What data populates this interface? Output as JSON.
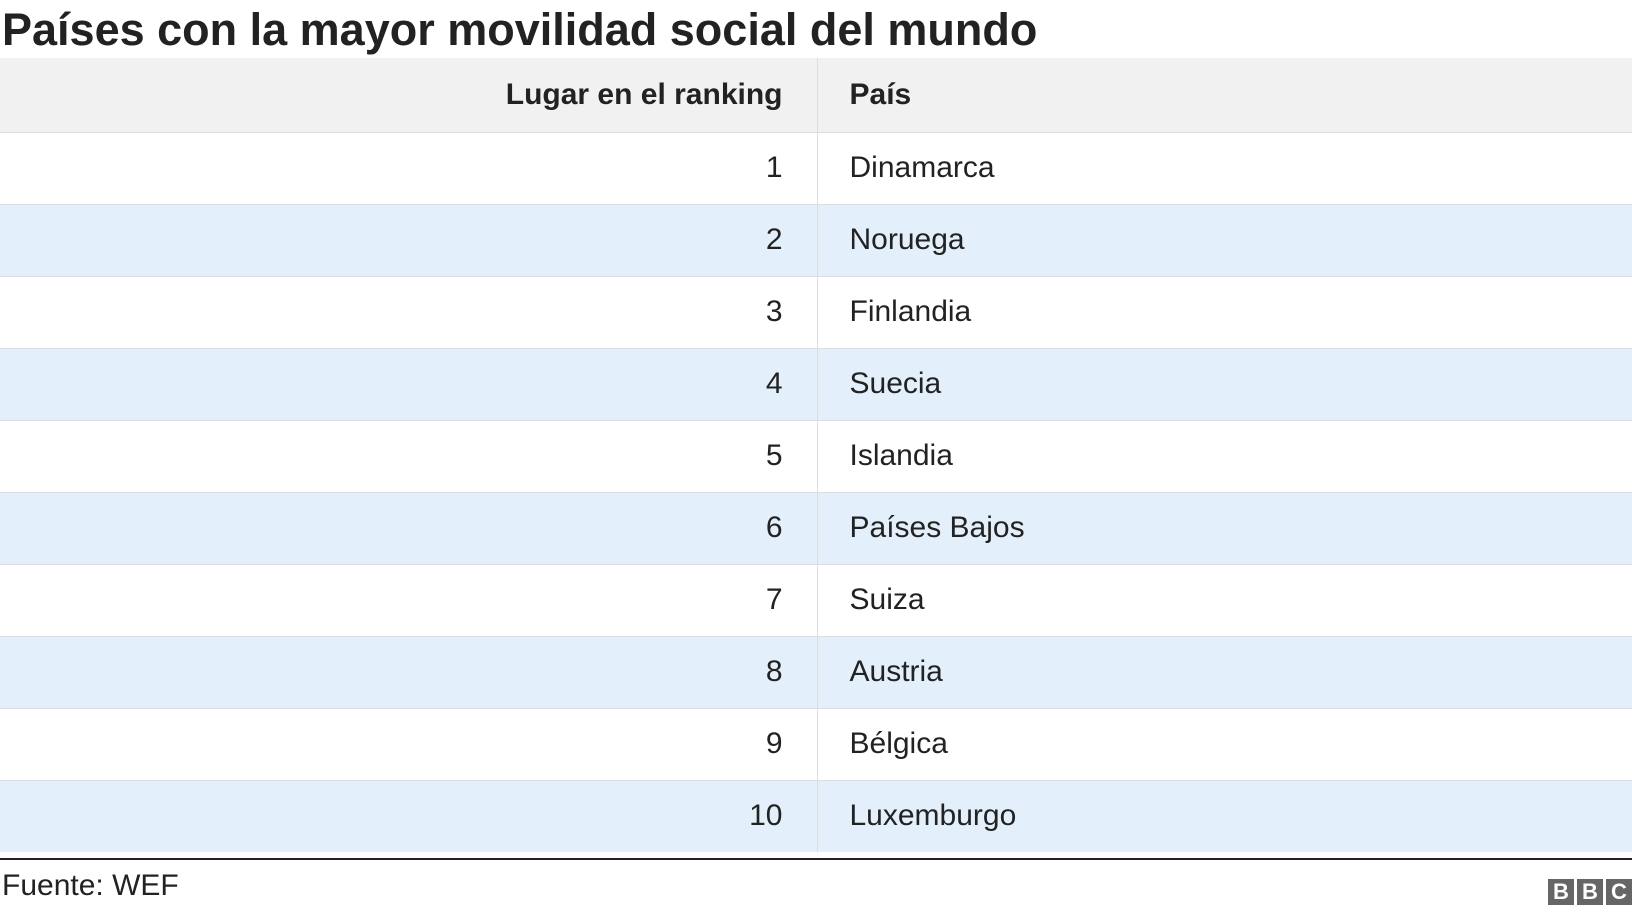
{
  "title": "Países con la mayor movilidad social del mundo",
  "chart_data": {
    "type": "table",
    "title": "Países con la mayor movilidad social del mundo",
    "columns": [
      "Lugar en el ranking",
      "País"
    ],
    "rows": [
      {
        "rank": "1",
        "country": "Dinamarca"
      },
      {
        "rank": "2",
        "country": "Noruega"
      },
      {
        "rank": "3",
        "country": "Finlandia"
      },
      {
        "rank": "4",
        "country": "Suecia"
      },
      {
        "rank": "5",
        "country": "Islandia"
      },
      {
        "rank": "6",
        "country": "Países Bajos"
      },
      {
        "rank": "7",
        "country": "Suiza"
      },
      {
        "rank": "8",
        "country": "Austria"
      },
      {
        "rank": "9",
        "country": "Bélgica"
      },
      {
        "rank": "10",
        "country": "Luxemburgo"
      }
    ]
  },
  "footer": {
    "source": "Fuente: WEF",
    "logo_letters": [
      "B",
      "B",
      "C"
    ]
  },
  "colors": {
    "header_bg": "#f1f1f1",
    "row_alt_bg": "#e3f0fb",
    "text": "#222222",
    "logo_bg": "#666666"
  }
}
